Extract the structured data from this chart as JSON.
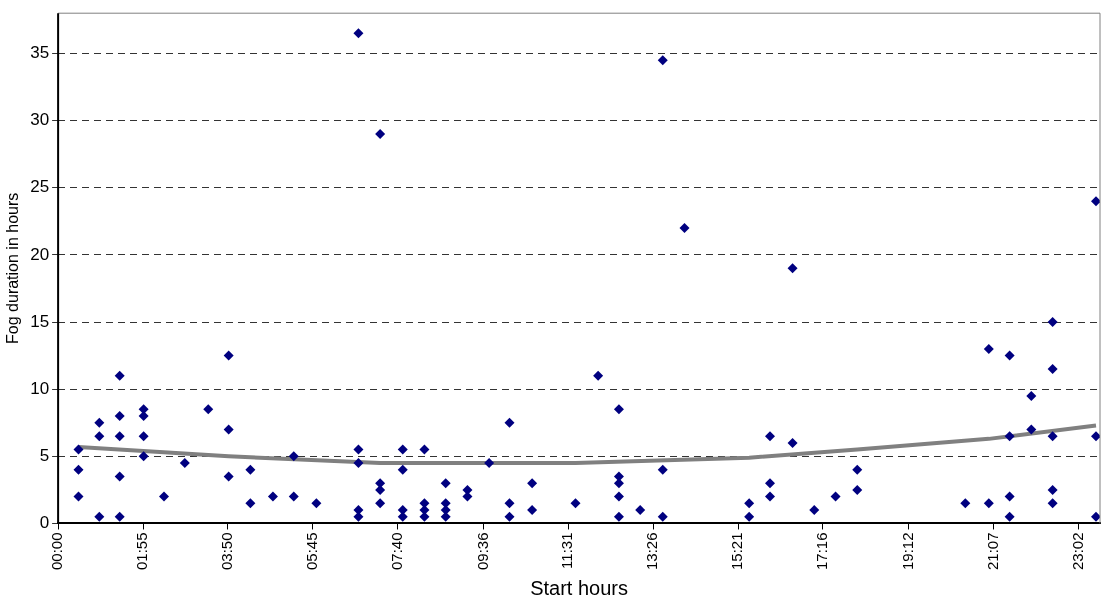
{
  "chart_data": {
    "type": "scatter",
    "xlabel": "Start hours",
    "ylabel": "Fog duration in hours",
    "xlim": [
      0,
      23.52
    ],
    "ylim": [
      0,
      38
    ],
    "xticks": [
      {
        "value": 0,
        "label": "00:00"
      },
      {
        "value": 1.9167,
        "label": "01:55"
      },
      {
        "value": 3.8333,
        "label": "03:50"
      },
      {
        "value": 5.75,
        "label": "05:45"
      },
      {
        "value": 7.6667,
        "label": "07:40"
      },
      {
        "value": 9.6,
        "label": "09:36"
      },
      {
        "value": 11.5167,
        "label": "11:31"
      },
      {
        "value": 13.4333,
        "label": "13:26"
      },
      {
        "value": 15.35,
        "label": "15:21"
      },
      {
        "value": 17.2667,
        "label": "17:16"
      },
      {
        "value": 19.2,
        "label": "19:12"
      },
      {
        "value": 21.1167,
        "label": "21:07"
      },
      {
        "value": 23.0333,
        "label": "23:02"
      }
    ],
    "yticks": [
      0,
      5,
      10,
      15,
      20,
      25,
      30,
      35
    ],
    "grid": "y",
    "legend": false,
    "marker": "diamond",
    "series": [
      {
        "color": "#000080",
        "x": [
          0.46,
          0.46,
          0.46,
          0.93,
          0.93,
          0.93,
          1.39,
          1.39,
          1.39,
          1.39,
          1.39,
          1.93,
          1.93,
          1.93,
          1.93,
          2.39,
          2.86,
          3.39,
          3.85,
          3.85,
          3.85,
          4.34,
          4.34,
          4.85,
          5.32,
          5.32,
          5.83,
          6.78,
          6.78,
          6.78,
          6.78,
          6.78,
          7.27,
          7.27,
          7.27,
          7.27,
          7.78,
          7.78,
          7.78,
          7.78,
          8.27,
          8.27,
          8.27,
          8.27,
          8.75,
          8.75,
          8.75,
          8.75,
          9.24,
          9.24,
          9.73,
          10.19,
          10.19,
          10.19,
          10.7,
          10.7,
          11.68,
          12.19,
          12.66,
          12.66,
          12.66,
          12.66,
          12.66,
          13.14,
          13.65,
          13.65,
          13.65,
          14.14,
          15.6,
          15.6,
          16.07,
          16.07,
          16.07,
          16.58,
          16.58,
          17.07,
          17.55,
          18.04,
          18.04,
          20.48,
          21.01,
          21.01,
          21.48,
          21.48,
          21.48,
          21.48,
          21.97,
          21.97,
          22.45,
          22.45,
          22.45,
          22.45,
          22.45,
          23.43,
          23.43,
          23.43
        ],
        "values": [
          5.5,
          4,
          2,
          7.5,
          6.5,
          0.5,
          11,
          8,
          6.5,
          3.5,
          0.5,
          8.5,
          8,
          6.5,
          5,
          2,
          4.5,
          8.5,
          12.5,
          7,
          3.5,
          4,
          1.5,
          2,
          5,
          2,
          1.5,
          36.5,
          5.5,
          4.5,
          1,
          0.5,
          29,
          3,
          2.5,
          1.5,
          5.5,
          4,
          1,
          0.5,
          5.5,
          1.5,
          1,
          0.5,
          3,
          1.5,
          1,
          0.5,
          2.5,
          2,
          4.5,
          7.5,
          1.5,
          0.5,
          3,
          1,
          1.5,
          11,
          8.5,
          3.5,
          3,
          2,
          0.5,
          1,
          34.5,
          4,
          0.5,
          22,
          1.5,
          0.5,
          6.5,
          3,
          2,
          19,
          6,
          1,
          2,
          4,
          2.5,
          1.5,
          13,
          1.5,
          12.5,
          6.5,
          2,
          0.5,
          9.5,
          7,
          15,
          11.5,
          6.5,
          2.5,
          1.5,
          24,
          6.5,
          0.5
        ]
      },
      {
        "type": "line",
        "color": "#808080",
        "marker": "none",
        "line_style": "solid",
        "x": [
          0.46,
          3.85,
          7.27,
          11.68,
          15.6,
          18.04,
          21.01,
          23.43
        ],
        "values": [
          5.7,
          5.0,
          4.5,
          4.5,
          4.9,
          5.5,
          6.3,
          7.3
        ]
      }
    ]
  }
}
